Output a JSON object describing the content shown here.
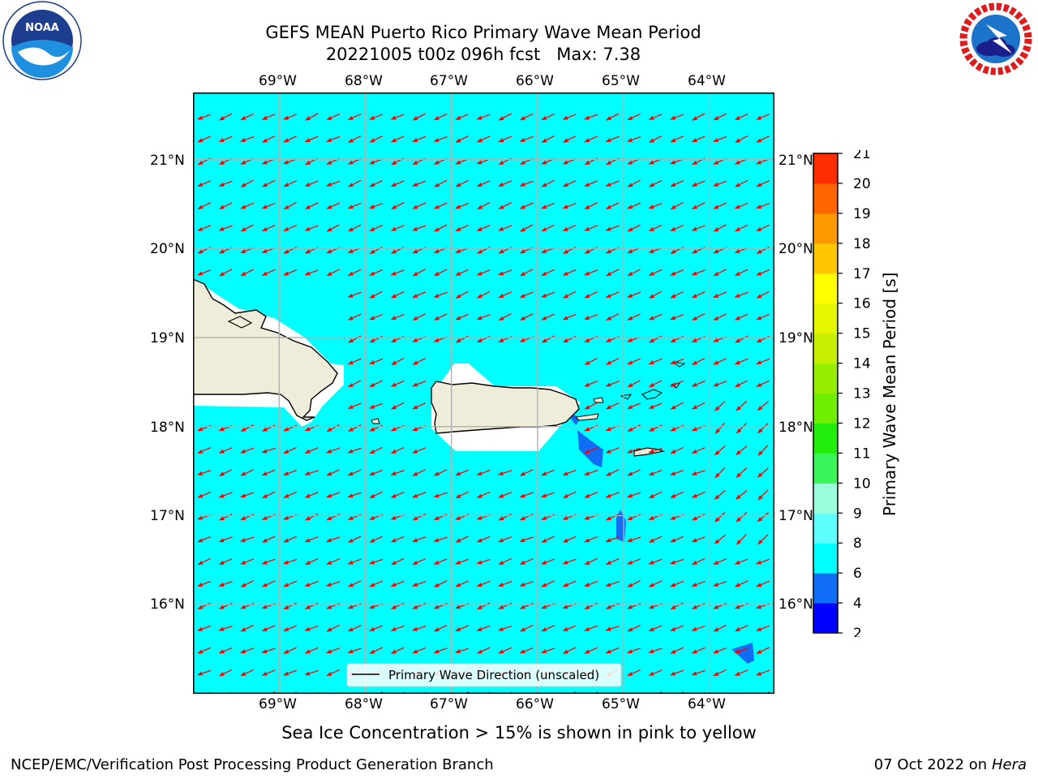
{
  "title": {
    "line1": "GEFS MEAN Puerto Rico Primary Wave Mean Period",
    "line2": "20221005 t00z 096h fcst   Max: 7.38"
  },
  "logos": {
    "left": {
      "name": "NOAA",
      "text": "NOAA",
      "ring_text": "NATIONAL OCEANIC AND ATMOSPHERIC ADMINISTRATION · U.S. DEPARTMENT OF COMMERCE"
    },
    "right": {
      "name": "National Weather Service",
      "ring_text": "NATIONAL WEATHER SERVICE"
    }
  },
  "map": {
    "lon_ticks": [
      "69°W",
      "68°W",
      "67°W",
      "66°W",
      "65°W",
      "64°W"
    ],
    "lat_ticks": [
      "21°N",
      "20°N",
      "19°N",
      "18°N",
      "17°N",
      "16°N"
    ],
    "lon_range": [
      -70,
      -63.25
    ],
    "lat_range": [
      15,
      21.75
    ],
    "background_color": "#00ffff",
    "land_color": "#efedd9",
    "arrow_color": "#ff0000",
    "legend_label": "Primary Wave Direction (unscaled)",
    "arrow_direction": "toward west-southwest"
  },
  "colorbar": {
    "label": "Primary Wave Mean Period [s]",
    "ticks": [
      "2",
      "4",
      "6",
      "8",
      "9",
      "10",
      "11",
      "12",
      "13",
      "14",
      "15",
      "16",
      "17",
      "18",
      "19",
      "20",
      "21"
    ],
    "colors": [
      "#0000ff",
      "#0f6ef5",
      "#00ffff",
      "#5fffff",
      "#99ffdd",
      "#3af55a",
      "#22ee0b",
      "#6fee00",
      "#99ee00",
      "#c6ee00",
      "#e6f500",
      "#ffff00",
      "#ffc800",
      "#ff9900",
      "#ff6600",
      "#ff2e00",
      "#ff0000"
    ]
  },
  "caption": "Sea Ice Concentration > 15% is shown in pink to yellow",
  "footer": {
    "left": "NCEP/EMC/Verification Post Processing Product Generation Branch",
    "right_prefix": "07 Oct 2022 on ",
    "right_host": "Hera"
  }
}
